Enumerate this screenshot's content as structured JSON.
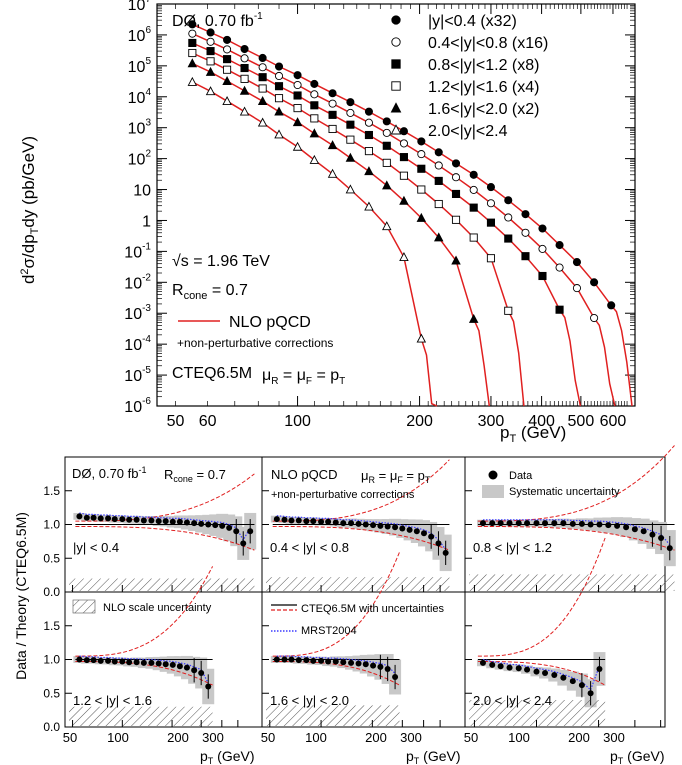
{
  "top_chart": {
    "annotations": {
      "experiment": "DØ, 0.70 fb",
      "experiment_sup": "-1",
      "sqrt_s": "s = 1.96 TeV",
      "rcone_main": "R",
      "rcone_sub": "cone",
      "rcone_val": " = 0.7",
      "nlo_label": "NLO pQCD",
      "nonpert": "+non-perturbative corrections",
      "pdf": "CTEQ6.5M",
      "scale_text": "μ = μ = p"
    },
    "ylabel": "d²σ/dp_T dy (pb/GeV)",
    "xlabel": "p_T (GeV)"
  },
  "chart_data": [
    {
      "type": "scatter",
      "title": "",
      "xlabel": "p_T (GeV)",
      "ylabel": "d²σ/dp_T dy (pb/GeV)",
      "xscale": "log",
      "yscale": "log",
      "xlim": [
        45,
        680
      ],
      "ylim": [
        1e-06,
        10000000.0
      ],
      "x_ticks": [
        50,
        60,
        100,
        200,
        300,
        400,
        500,
        600
      ],
      "y_ticks": [
        {
          "v": 10000000.0,
          "base": "10",
          "exp": "7"
        },
        {
          "v": 1000000.0,
          "base": "10",
          "exp": "6"
        },
        {
          "v": 100000.0,
          "base": "10",
          "exp": "5"
        },
        {
          "v": 10000.0,
          "base": "10",
          "exp": "4"
        },
        {
          "v": 1000.0,
          "base": "10",
          "exp": "3"
        },
        {
          "v": 100.0,
          "base": "10",
          "exp": "2"
        },
        {
          "v": 10,
          "base": "10",
          "exp": ""
        },
        {
          "v": 1,
          "base": "1",
          "exp": ""
        },
        {
          "v": 0.1,
          "base": "10",
          "exp": "-1"
        },
        {
          "v": 0.01,
          "base": "10",
          "exp": "-2"
        },
        {
          "v": 0.001,
          "base": "10",
          "exp": "-3"
        },
        {
          "v": 0.0001,
          "base": "10",
          "exp": "-4"
        },
        {
          "v": 1e-05,
          "base": "10",
          "exp": "-5"
        },
        {
          "v": 1e-06,
          "base": "10",
          "exp": "-6"
        }
      ],
      "legend_position": "top-right",
      "theory_curve": {
        "name": "NLO pQCD",
        "color": "#e02020"
      },
      "series": [
        {
          "name": "|y|<0.4 (x32)",
          "marker": "filled-circle",
          "x": [
            55,
            61,
            67,
            74,
            82,
            90,
            100,
            110,
            122,
            135,
            150,
            166,
            183,
            202,
            223,
            246,
            272,
            300,
            331,
            365,
            402,
            443,
            489,
            539,
            594
          ],
          "y": [
            2200000.0,
            1200000.0,
            690000.0,
            350000.0,
            180000.0,
            95000.0,
            50000.0,
            26000.0,
            13000.0,
            6700.0,
            3300.0,
            1600.0,
            770,
            360,
            160,
            70,
            30,
            12,
            4.5,
            1.6,
            0.55,
            0.16,
            0.045,
            0.01,
            0.0018
          ]
        },
        {
          "name": "0.4<|y|<0.8 (x16)",
          "marker": "open-circle",
          "x": [
            55,
            61,
            67,
            74,
            82,
            90,
            100,
            110,
            122,
            135,
            150,
            166,
            183,
            202,
            223,
            246,
            272,
            300,
            331,
            365,
            402,
            443,
            489,
            539
          ],
          "y": [
            1100000.0,
            600000.0,
            340000.0,
            175000.0,
            90000.0,
            47000.0,
            24000.0,
            12000.0,
            6000.0,
            3000.0,
            1450.0,
            680,
            310,
            140,
            60,
            25,
            9.7,
            3.6,
            1.25,
            0.4,
            0.12,
            0.03,
            0.0065,
            0.0007
          ]
        },
        {
          "name": "0.8<|y|<1.2 (x8)",
          "marker": "filled-square",
          "x": [
            55,
            61,
            67,
            74,
            82,
            90,
            100,
            110,
            122,
            135,
            150,
            166,
            183,
            202,
            223,
            246,
            272,
            300,
            331,
            365,
            402,
            443
          ],
          "y": [
            550000.0,
            300000.0,
            165000.0,
            85000.0,
            43000.0,
            22000.0,
            11000.0,
            5300.0,
            2600.0,
            1250.0,
            580,
            260,
            112,
            47,
            19,
            7.2,
            2.6,
            0.85,
            0.26,
            0.07,
            0.016,
            0.0013
          ]
        },
        {
          "name": "1.2<|y|<1.6 (x4)",
          "marker": "open-square",
          "x": [
            55,
            61,
            67,
            74,
            82,
            90,
            100,
            110,
            122,
            135,
            150,
            166,
            183,
            202,
            223,
            246,
            272,
            300,
            331
          ],
          "y": [
            260000.0,
            140000.0,
            75000.0,
            38000.0,
            18500.0,
            9000.0,
            4300.0,
            2000.0,
            910,
            410,
            175,
            73,
            28,
            10,
            3.4,
            1.05,
            0.28,
            0.06,
            0.0012
          ]
        },
        {
          "name": "1.6<|y|<2.0 (x2)",
          "marker": "filled-triangle",
          "x": [
            55,
            61,
            67,
            74,
            82,
            90,
            100,
            110,
            122,
            135,
            150,
            166,
            183,
            202,
            223,
            246,
            272
          ],
          "y": [
            120000.0,
            63000.0,
            32000.0,
            15500.0,
            7200.0,
            3300.0,
            1500.0,
            650,
            270,
            105,
            39,
            13.5,
            4.3,
            1.2,
            0.28,
            0.05,
            0.00065
          ]
        },
        {
          "name": "2.0<|y|<2.4",
          "marker": "open-triangle",
          "x": [
            55,
            61,
            67,
            74,
            82,
            90,
            100,
            110,
            122,
            135,
            150,
            166,
            183,
            202
          ],
          "y": [
            30000.0,
            15000.0,
            7200.0,
            3300.0,
            1450.0,
            600,
            240,
            90,
            32,
            10,
            2.8,
            0.65,
            0.065,
            0.00015
          ]
        }
      ]
    },
    {
      "type": "scatter",
      "title": "",
      "ylabel": "Data / Theory (CTEQ6.5M)",
      "xlabel": "p_T (GeV)",
      "xscale": "log",
      "ylim": [
        0,
        2
      ],
      "y_ticks": [
        "0.0",
        "0.5",
        "1.0",
        "1.5"
      ],
      "x_ticks": [
        "50",
        "100",
        "200",
        "300"
      ],
      "panels": [
        {
          "region": "|y| < 0.4",
          "pt_max": 600,
          "hatch": 0.2,
          "x": [
            55,
            61,
            67,
            74,
            82,
            90,
            100,
            110,
            122,
            135,
            150,
            166,
            183,
            202,
            223,
            246,
            272,
            300,
            331,
            365,
            402,
            443,
            489,
            539,
            594
          ],
          "y": [
            1.12,
            1.1,
            1.1,
            1.09,
            1.09,
            1.08,
            1.08,
            1.07,
            1.07,
            1.06,
            1.06,
            1.05,
            1.05,
            1.04,
            1.04,
            1.03,
            1.02,
            1.01,
            1.0,
            0.99,
            0.98,
            0.95,
            0.9,
            0.72,
            0.9
          ]
        },
        {
          "region": "0.4 < |y| < 0.8",
          "pt_max": 540,
          "hatch": 0.22,
          "x": [
            55,
            61,
            67,
            74,
            82,
            90,
            100,
            110,
            122,
            135,
            150,
            166,
            183,
            202,
            223,
            246,
            272,
            300,
            331,
            365,
            402,
            443,
            489,
            539
          ],
          "y": [
            1.08,
            1.07,
            1.06,
            1.06,
            1.05,
            1.05,
            1.04,
            1.04,
            1.03,
            1.02,
            1.02,
            1.01,
            1.0,
            0.99,
            0.98,
            0.97,
            0.96,
            0.94,
            0.92,
            0.9,
            0.87,
            0.82,
            0.72,
            0.58
          ]
        },
        {
          "region": "0.8 < |y| < 1.2",
          "pt_max": 445,
          "hatch": 0.26,
          "x": [
            55,
            61,
            67,
            74,
            82,
            90,
            100,
            110,
            122,
            135,
            150,
            166,
            183,
            202,
            223,
            246,
            272,
            300,
            331,
            365,
            402,
            443
          ],
          "y": [
            1.02,
            1.02,
            1.02,
            1.02,
            1.02,
            1.02,
            1.02,
            1.02,
            1.02,
            1.02,
            1.01,
            1.01,
            1.0,
            1.0,
            0.99,
            0.98,
            0.96,
            0.93,
            0.9,
            0.85,
            0.8,
            0.65
          ]
        },
        {
          "region": "1.2 < |y| < 1.6",
          "pt_max": 335,
          "hatch": 0.3,
          "x": [
            55,
            61,
            67,
            74,
            82,
            90,
            100,
            110,
            122,
            135,
            150,
            166,
            183,
            202,
            223,
            246,
            272,
            300,
            331
          ],
          "y": [
            1.0,
            0.99,
            0.99,
            0.98,
            0.98,
            0.97,
            0.97,
            0.96,
            0.96,
            0.95,
            0.95,
            0.94,
            0.93,
            0.92,
            0.9,
            0.88,
            0.84,
            0.8,
            0.6
          ]
        },
        {
          "region": "1.6 < |y| < 2.0",
          "pt_max": 275,
          "hatch": 0.32,
          "x": [
            55,
            61,
            67,
            74,
            82,
            90,
            100,
            110,
            122,
            135,
            150,
            166,
            183,
            202,
            223,
            246,
            272
          ],
          "y": [
            1.0,
            1.0,
            1.0,
            0.99,
            0.99,
            0.98,
            0.98,
            0.97,
            0.97,
            0.96,
            0.95,
            0.94,
            0.93,
            0.91,
            0.89,
            0.86,
            0.74
          ]
        },
        {
          "region": "2.0 < |y| < 2.4",
          "pt_max": 205,
          "hatch": 0.4,
          "x": [
            55,
            61,
            67,
            74,
            82,
            90,
            100,
            110,
            122,
            135,
            150,
            166,
            183,
            202
          ],
          "y": [
            0.95,
            0.92,
            0.9,
            0.88,
            0.87,
            0.85,
            0.82,
            0.8,
            0.77,
            0.73,
            0.68,
            0.62,
            0.5,
            0.86
          ]
        }
      ],
      "legend": {
        "data": "Data",
        "syst": "Systematic uncertainty",
        "nlo_scale": "NLO scale uncertainty",
        "cteq": "CTEQ6.5M with uncertainties",
        "mrst": "MRST2004"
      },
      "panel_annotations": {
        "p0_exp": "DØ, 0.70 fb",
        "p0_exp_sup": "-1",
        "p0_rcone": "R",
        "p0_rcone_sub": "cone",
        "p0_rcone_val": " = 0.7",
        "p1_nlo": "NLO pQCD",
        "p1_scale": "μ = μ = p",
        "p1_nonpert": "+non-perturbative corrections"
      }
    }
  ]
}
